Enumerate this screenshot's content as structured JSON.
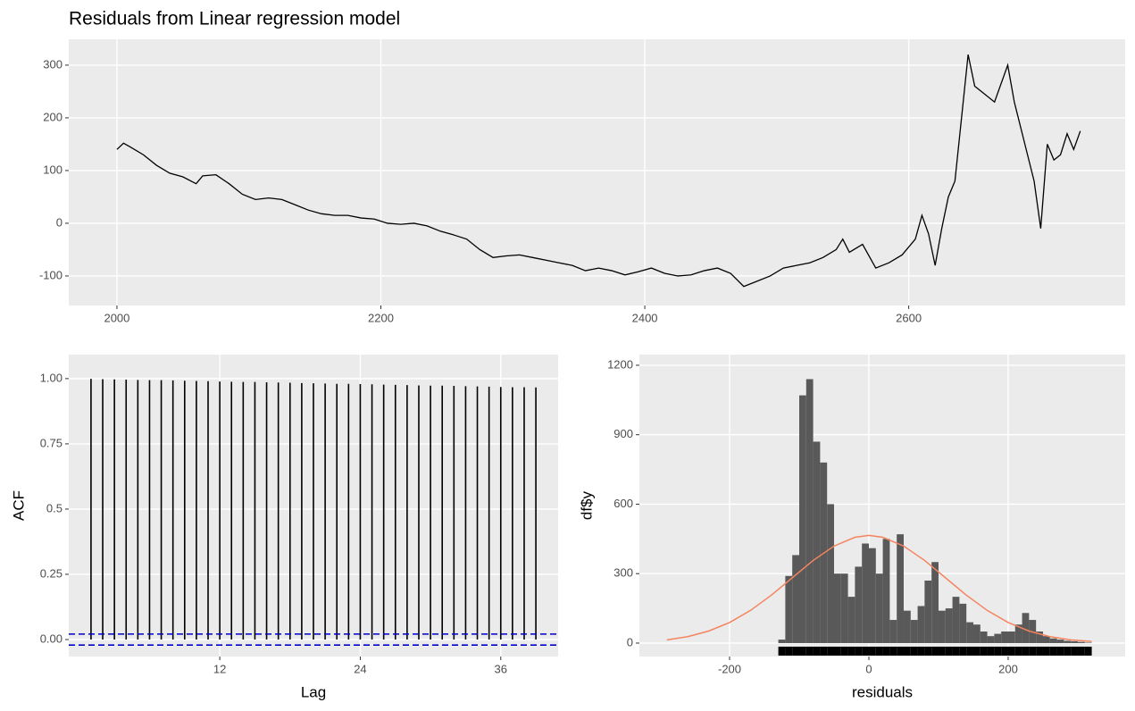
{
  "chart_data": [
    {
      "type": "line",
      "title": "Residuals from Linear regression model",
      "color": "#000000",
      "x": [
        2000,
        2005,
        2010,
        2020,
        2030,
        2040,
        2050,
        2060,
        2065,
        2075,
        2085,
        2095,
        2105,
        2115,
        2125,
        2135,
        2145,
        2155,
        2165,
        2175,
        2185,
        2195,
        2205,
        2215,
        2225,
        2235,
        2245,
        2255,
        2265,
        2275,
        2285,
        2295,
        2305,
        2315,
        2325,
        2335,
        2345,
        2355,
        2365,
        2375,
        2385,
        2395,
        2405,
        2415,
        2425,
        2435,
        2445,
        2455,
        2465,
        2475,
        2485,
        2495,
        2505,
        2515,
        2525,
        2535,
        2545,
        2550,
        2555,
        2565,
        2575,
        2585,
        2595,
        2605,
        2610,
        2615,
        2620,
        2625,
        2630,
        2635,
        2640,
        2645,
        2650,
        2655,
        2665,
        2675,
        2680,
        2690,
        2695,
        2700,
        2705,
        2710,
        2715,
        2720,
        2725,
        2730
      ],
      "values": [
        140,
        152,
        145,
        130,
        110,
        95,
        88,
        75,
        90,
        92,
        75,
        55,
        45,
        48,
        45,
        35,
        25,
        18,
        15,
        15,
        10,
        8,
        0,
        -2,
        0,
        -5,
        -15,
        -22,
        -30,
        -50,
        -65,
        -62,
        -60,
        -65,
        -70,
        -75,
        -80,
        -90,
        -85,
        -90,
        -98,
        -92,
        -85,
        -95,
        -100,
        -98,
        -90,
        -85,
        -95,
        -120,
        -110,
        -100,
        -85,
        -80,
        -75,
        -65,
        -50,
        -30,
        -55,
        -40,
        -85,
        -75,
        -60,
        -30,
        15,
        -20,
        -80,
        -10,
        50,
        80,
        200,
        320,
        260,
        250,
        230,
        300,
        230,
        130,
        80,
        -10,
        150,
        120,
        130,
        170,
        140,
        175
      ],
      "xlim": [
        1963.5,
        2764
      ],
      "ylim": [
        -156,
        349
      ],
      "xticks": [
        2000,
        2200,
        2400,
        2600
      ],
      "yticks": [
        -100,
        0,
        100,
        200,
        300
      ],
      "grid": true
    },
    {
      "type": "bar",
      "xlabel": "Lag",
      "ylabel": "ACF",
      "color": "#000000",
      "ci_color": "#0000cc",
      "x": [
        1,
        2,
        3,
        4,
        5,
        6,
        7,
        8,
        9,
        10,
        11,
        12,
        13,
        14,
        15,
        16,
        17,
        18,
        19,
        20,
        21,
        22,
        23,
        24,
        25,
        26,
        27,
        28,
        29,
        30,
        31,
        32,
        33,
        34,
        35,
        36,
        37,
        38,
        39
      ],
      "values": [
        0.999,
        0.998,
        0.997,
        0.996,
        0.995,
        0.994,
        0.994,
        0.993,
        0.992,
        0.991,
        0.99,
        0.989,
        0.988,
        0.987,
        0.987,
        0.986,
        0.985,
        0.984,
        0.983,
        0.982,
        0.981,
        0.98,
        0.98,
        0.979,
        0.978,
        0.977,
        0.976,
        0.975,
        0.974,
        0.973,
        0.973,
        0.972,
        0.971,
        0.97,
        0.969,
        0.968,
        0.967,
        0.967,
        0.966
      ],
      "ci": [
        -0.021,
        0.021
      ],
      "xlim": [
        -0.9,
        40.9
      ],
      "ylim": [
        -0.065,
        1.092
      ],
      "xticks": [
        12,
        24,
        36
      ],
      "yticks": [
        {
          "value": 0,
          "label": "0.00"
        },
        0.25,
        0.5,
        0.75,
        {
          "value": 1,
          "label": "1.00"
        }
      ],
      "grid": true
    },
    {
      "type": "histogram",
      "xlabel": "residuals",
      "ylabel": "df$y",
      "color": "#595959",
      "rug_color": "#000000",
      "bins": [
        -130,
        -120,
        -110,
        -100,
        -90,
        -80,
        -70,
        -60,
        -50,
        -40,
        -30,
        -20,
        -10,
        0,
        10,
        20,
        30,
        40,
        50,
        60,
        70,
        80,
        90,
        100,
        110,
        120,
        130,
        140,
        150,
        160,
        170,
        180,
        190,
        200,
        210,
        220,
        230,
        240,
        250,
        260,
        270,
        280,
        290,
        300,
        310,
        320
      ],
      "values": [
        15,
        290,
        380,
        1070,
        1140,
        870,
        780,
        600,
        300,
        300,
        200,
        330,
        430,
        410,
        300,
        450,
        100,
        470,
        140,
        100,
        160,
        270,
        350,
        140,
        150,
        200,
        170,
        90,
        80,
        50,
        30,
        40,
        50,
        50,
        80,
        130,
        100,
        50,
        30,
        20,
        15,
        10,
        8,
        5,
        2
      ],
      "curve": {
        "color": "#f4845f",
        "x": [
          -290,
          -260,
          -230,
          -200,
          -170,
          -140,
          -110,
          -80,
          -50,
          -20,
          0,
          20,
          50,
          80,
          110,
          140,
          170,
          200,
          230,
          260,
          290,
          320
        ],
        "y": [
          14,
          28,
          52,
          89,
          141,
          207,
          282,
          357,
          419,
          457,
          465,
          457,
          419,
          357,
          282,
          207,
          141,
          89,
          52,
          28,
          14,
          7
        ]
      },
      "xlim": [
        -329.5,
        368
      ],
      "ylim": [
        -58,
        1246
      ],
      "xticks": [
        -200,
        0,
        200
      ],
      "yticks": [
        0,
        300,
        600,
        900,
        1200
      ],
      "grid": true
    }
  ]
}
